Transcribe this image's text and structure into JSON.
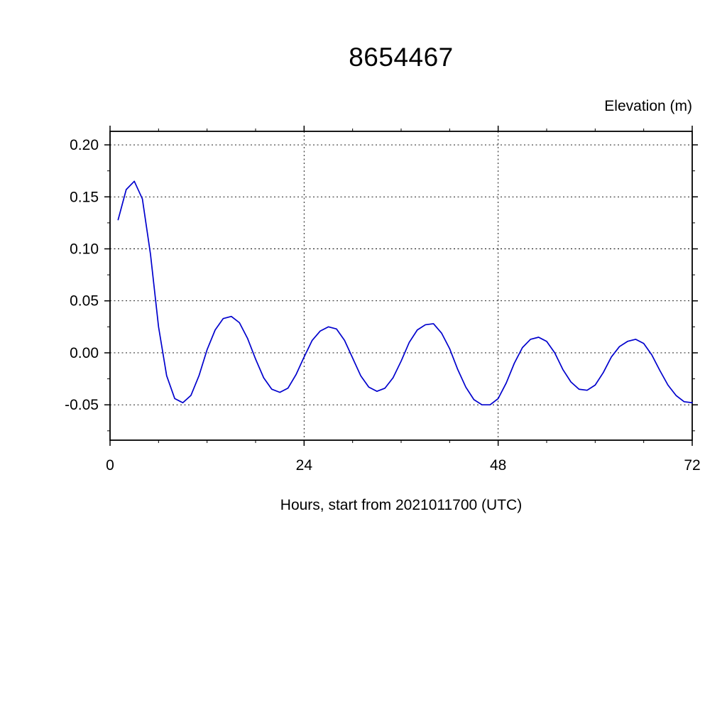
{
  "page": {
    "background": "#ffffff"
  },
  "chart_data": {
    "type": "line",
    "title": "8654467",
    "ylabel": "Elevation (m)",
    "xlabel": "Hours, start from 2021011700 (UTC)",
    "xlim": [
      0,
      72
    ],
    "ylim": [
      -0.084,
      0.213
    ],
    "x_ticks": [
      0,
      24,
      48,
      72
    ],
    "x_tick_labels": [
      "0",
      "24",
      "48",
      "72"
    ],
    "x_minor_step": 6,
    "y_ticks": [
      0.2,
      0.15,
      0.1,
      0.05,
      0.0,
      -0.05
    ],
    "y_tick_labels": [
      "0.20",
      "0.15",
      "0.10",
      "0.05",
      "0.00",
      "-0.05"
    ],
    "y_minor_step": 0.025,
    "grid": true,
    "grid_style": "dashed",
    "axis_color": "#000000",
    "series": [
      {
        "name": "elevation",
        "color": "#0000cd",
        "x": [
          1,
          2,
          3,
          4,
          5,
          6,
          7,
          8,
          9,
          10,
          11,
          12,
          13,
          14,
          15,
          16,
          17,
          18,
          19,
          20,
          21,
          22,
          23,
          24,
          25,
          26,
          27,
          28,
          29,
          30,
          31,
          32,
          33,
          34,
          35,
          36,
          37,
          38,
          39,
          40,
          41,
          42,
          43,
          44,
          45,
          46,
          47,
          48,
          49,
          50,
          51,
          52,
          53,
          54,
          55,
          56,
          57,
          58,
          59,
          60,
          61,
          62,
          63,
          64,
          65,
          66,
          67,
          68,
          69,
          70,
          71,
          72
        ],
        "y": [
          0.128,
          0.157,
          0.165,
          0.148,
          0.095,
          0.025,
          -0.022,
          -0.044,
          -0.048,
          -0.041,
          -0.022,
          0.003,
          0.022,
          0.033,
          0.035,
          0.029,
          0.014,
          -0.006,
          -0.024,
          -0.035,
          -0.038,
          -0.034,
          -0.021,
          -0.004,
          0.012,
          0.021,
          0.025,
          0.023,
          0.012,
          -0.005,
          -0.022,
          -0.033,
          -0.037,
          -0.034,
          -0.024,
          -0.008,
          0.01,
          0.022,
          0.027,
          0.028,
          0.019,
          0.004,
          -0.016,
          -0.033,
          -0.045,
          -0.05,
          -0.05,
          -0.044,
          -0.029,
          -0.01,
          0.005,
          0.013,
          0.015,
          0.011,
          0.0,
          -0.016,
          -0.028,
          -0.035,
          -0.036,
          -0.031,
          -0.019,
          -0.004,
          0.006,
          0.011,
          0.013,
          0.009,
          -0.002,
          -0.017,
          -0.031,
          -0.041,
          -0.047,
          -0.048
        ]
      }
    ]
  }
}
